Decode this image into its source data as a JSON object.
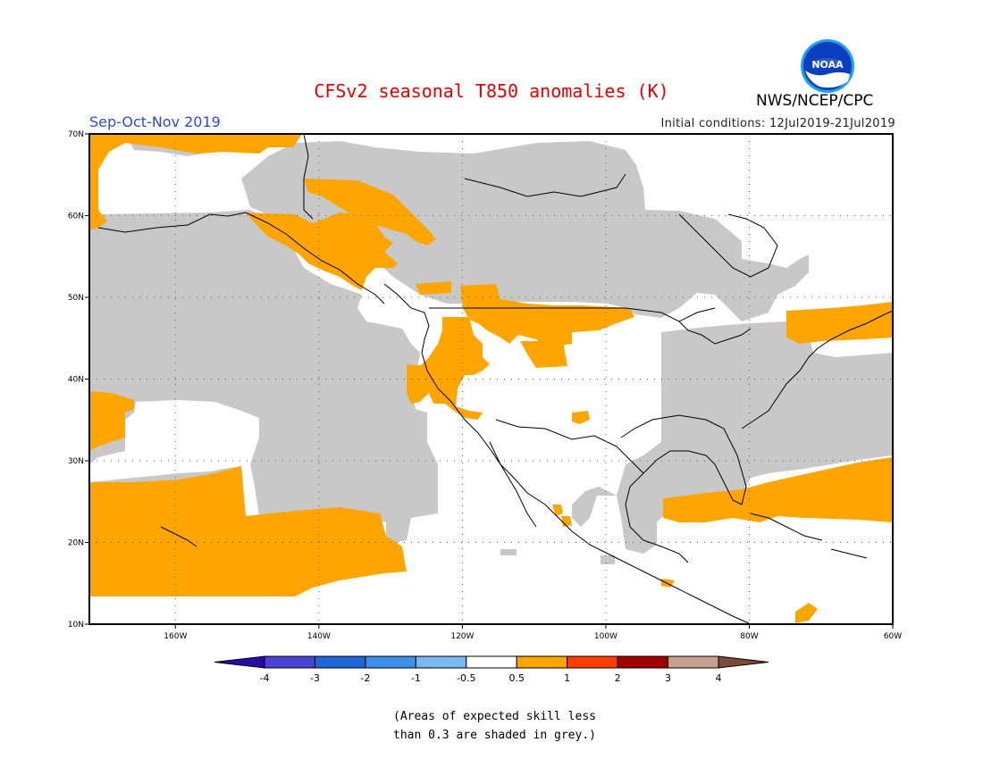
{
  "header": {
    "title": "CFSv2 seasonal T850 anomalies (K)",
    "season": "Sep-Oct-Nov 2019",
    "initial_conditions": "Initial conditions: 12Jul2019-21Jul2019",
    "agency": "NWS/NCEP/CPC",
    "logo_text": "NOAA"
  },
  "map": {
    "lon_range": [
      -172,
      -60
    ],
    "lat_range": [
      10,
      70
    ],
    "lat_ticks": [
      "70N",
      "60N",
      "50N",
      "40N",
      "30N",
      "20N",
      "10N"
    ],
    "lon_ticks": [
      "160W",
      "140W",
      "120W",
      "100W",
      "80W",
      "60W"
    ],
    "colors": {
      "skill_grey": "#c8c8c8",
      "anomaly_0_5_to_1": "#ffa500",
      "frame": "#000000"
    }
  },
  "colorbar": {
    "labels": [
      "-4",
      "-3",
      "-2",
      "-1",
      "-0.5",
      "0.5",
      "1",
      "2",
      "3",
      "4"
    ],
    "colors": [
      "#2a0aa8",
      "#4a44d4",
      "#1f66d6",
      "#3f8fe8",
      "#7ab6f0",
      "#ffffff",
      "#ffa500",
      "#ff3c00",
      "#a00000",
      "#c8a091",
      "#7a4a3a"
    ]
  },
  "note": {
    "line1": "(Areas of expected skill less",
    "line2": "than 0.3 are shaded in grey.)"
  }
}
